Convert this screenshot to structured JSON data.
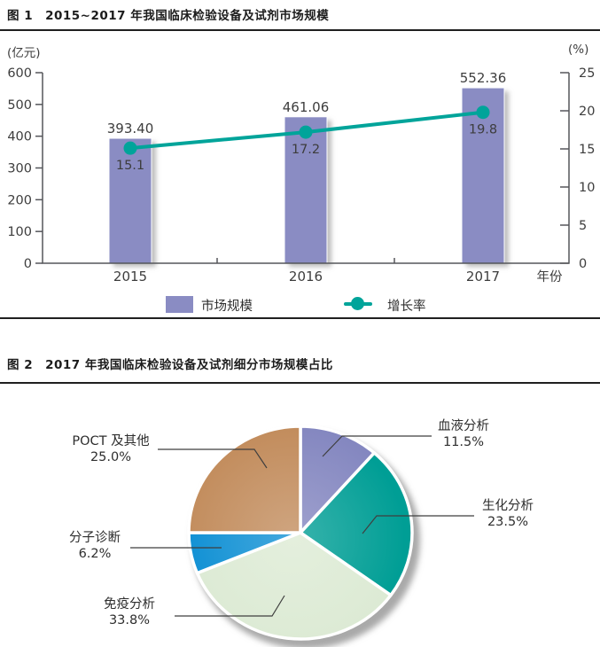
{
  "figure1": {
    "title": "图 1　2015~2017 年我国临床检验设备及试剂市场规模",
    "left_axis_unit": "(亿元)",
    "right_axis_unit": "(%)",
    "x_axis_label": "年份",
    "legend": [
      {
        "label": "市场规模",
        "type": "bar",
        "color": "#8a8cc3"
      },
      {
        "label": "增长率",
        "type": "line",
        "color": "#00a49a"
      }
    ]
  },
  "figure2": {
    "title": "图 2　2017 年我国临床检验设备及试剂细分市场规模占比"
  },
  "chart_data": [
    {
      "type": "bar",
      "title": "2015~2017 年我国临床检验设备及试剂市场规模",
      "categories": [
        "2015",
        "2016",
        "2017"
      ],
      "series": [
        {
          "name": "市场规模",
          "type": "bar",
          "axis": "left",
          "unit": "亿元",
          "values": [
            393.4,
            461.06,
            552.36
          ],
          "labels": [
            "393.40",
            "461.06",
            "552.36"
          ],
          "color": "#8a8cc3"
        },
        {
          "name": "增长率",
          "type": "line",
          "axis": "right",
          "unit": "%",
          "values": [
            15.1,
            17.2,
            19.8
          ],
          "labels": [
            "15.1",
            "17.2",
            "19.8"
          ],
          "color": "#00a49a"
        }
      ],
      "xlabel": "年份",
      "left_ylabel": "(亿元)",
      "left_ylim": [
        0,
        600
      ],
      "left_ticks": [
        0,
        100,
        200,
        300,
        400,
        500,
        600
      ],
      "right_ylabel": "(%)",
      "right_ylim": [
        0,
        25
      ],
      "right_ticks": [
        0,
        5,
        10,
        15,
        20,
        25
      ],
      "grid": false,
      "legend_position": "bottom"
    },
    {
      "type": "pie",
      "title": "2017 年我国临床检验设备及试剂细分市场规模占比",
      "slices": [
        {
          "label": "血液分析",
          "value": 11.5,
          "pct": "11.5%",
          "color": "#8487c0"
        },
        {
          "label": "生化分析",
          "value": 23.5,
          "pct": "23.5%",
          "color": "#009e95"
        },
        {
          "label": "免疫分析",
          "value": 33.8,
          "pct": "33.8%",
          "color": "#dcead4"
        },
        {
          "label": "分子诊断",
          "value": 6.2,
          "pct": "6.2%",
          "color": "#0f90d4"
        },
        {
          "label": "POCT 及其他",
          "value": 25.0,
          "pct": "25.0%",
          "color": "#c28c5c"
        }
      ],
      "start_angle_deg": 0,
      "direction": "clockwise"
    }
  ]
}
